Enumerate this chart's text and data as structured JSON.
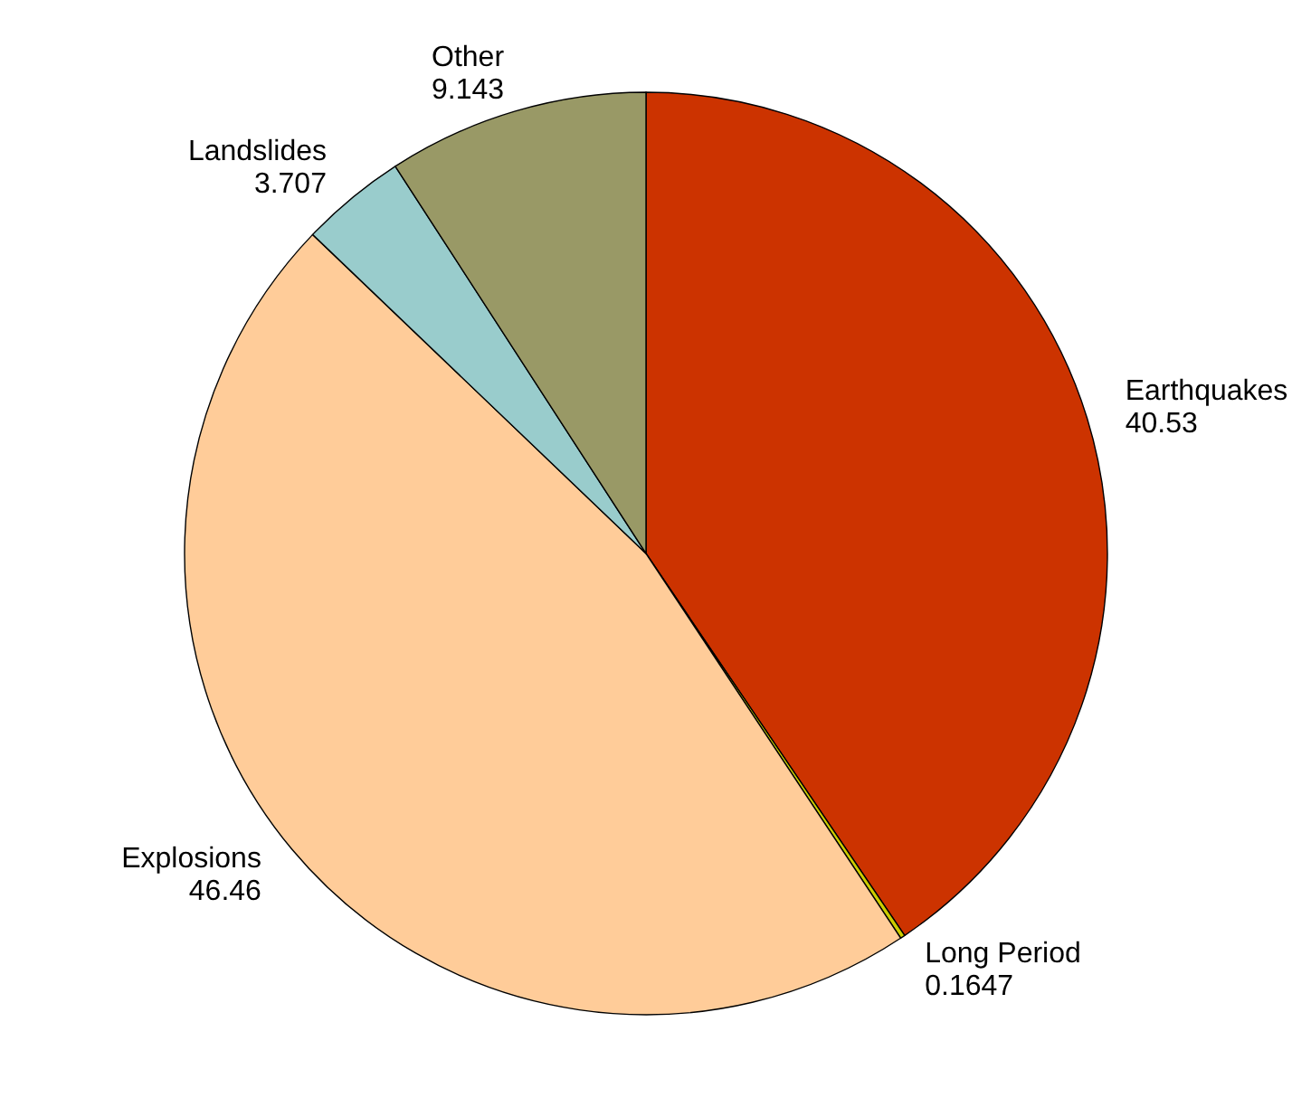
{
  "chart_data": {
    "type": "pie",
    "categories": [
      "Earthquakes",
      "Long Period",
      "Explosions",
      "Landslides",
      "Other"
    ],
    "values": [
      40.53,
      0.1647,
      46.46,
      3.707,
      9.143
    ],
    "colors": [
      "#cc3300",
      "#cccc00",
      "#ffcc99",
      "#99cccc",
      "#999966"
    ],
    "data_labels": true,
    "legend": false
  }
}
